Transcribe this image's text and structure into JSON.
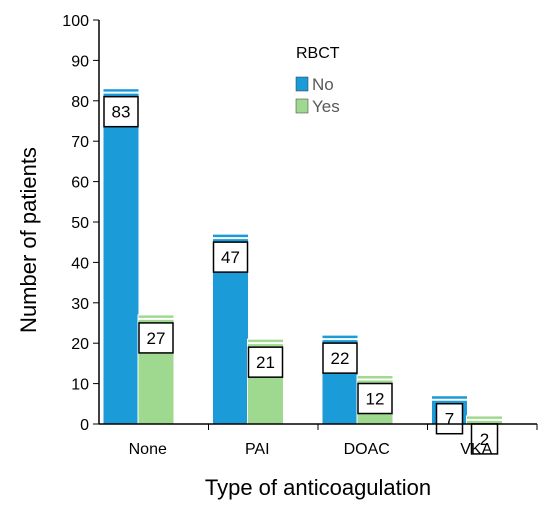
{
  "chart_data": {
    "type": "bar",
    "title": "",
    "xlabel": "Type of anticoagulation",
    "ylabel": "Number of patients",
    "ylim": [
      0,
      100
    ],
    "yticks": [
      "0",
      "10",
      "20",
      "30",
      "40",
      "50",
      "60",
      "70",
      "80",
      "90",
      "100"
    ],
    "categories": [
      "None",
      "PAI",
      "DOAC",
      "VKA"
    ],
    "legend_title": "RBCT",
    "legend_position": "top-right",
    "series": [
      {
        "name": "No",
        "color": "#1b9bd7",
        "values": [
          83,
          47,
          22,
          7
        ],
        "labels": [
          "83",
          "47",
          "22",
          "7"
        ]
      },
      {
        "name": "Yes",
        "color": "#9fd98f",
        "values": [
          27,
          21,
          12,
          2
        ],
        "labels": [
          "27",
          "21",
          "12",
          "2"
        ]
      }
    ]
  }
}
